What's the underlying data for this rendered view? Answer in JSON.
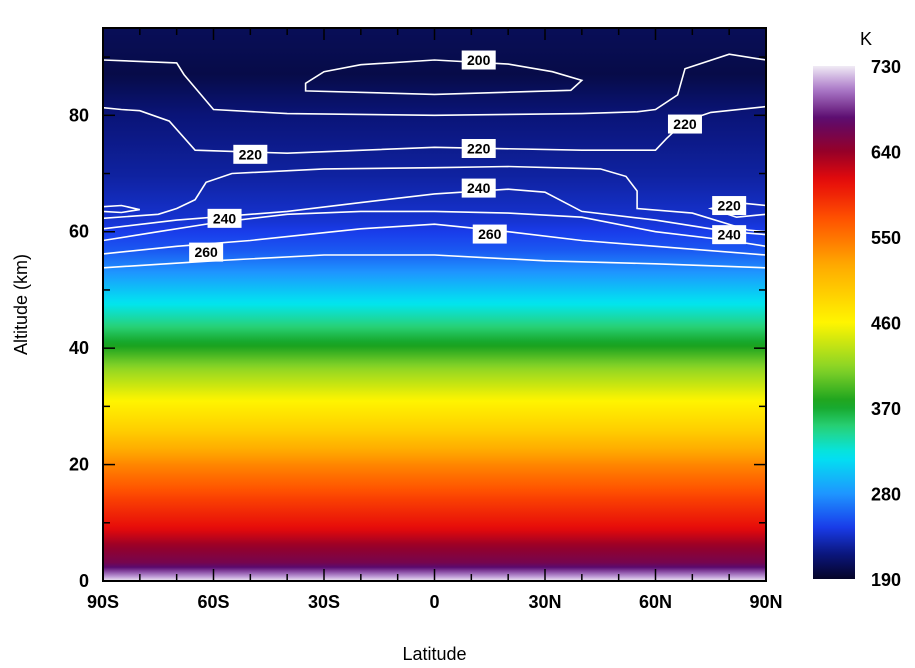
{
  "chart_data": {
    "type": "heatmap",
    "title": "",
    "xlabel": "Latitude",
    "ylabel": "Altitude (km)",
    "xlim": [
      -90,
      90
    ],
    "ylim": [
      0,
      95
    ],
    "x_ticks": [
      {
        "value": -90,
        "label": "90S"
      },
      {
        "value": -60,
        "label": "60S"
      },
      {
        "value": -30,
        "label": "30S"
      },
      {
        "value": 0,
        "label": "0"
      },
      {
        "value": 30,
        "label": "30N"
      },
      {
        "value": 60,
        "label": "60N"
      },
      {
        "value": 90,
        "label": "90N"
      }
    ],
    "y_ticks": [
      {
        "value": 0,
        "label": "0"
      },
      {
        "value": 20,
        "label": "20"
      },
      {
        "value": 40,
        "label": "40"
      },
      {
        "value": 60,
        "label": "60"
      },
      {
        "value": 80,
        "label": "80"
      }
    ],
    "colorbar": {
      "unit": "K",
      "min": 190,
      "max": 730,
      "ticks": [
        {
          "value": 190,
          "label": "190"
        },
        {
          "value": 280,
          "label": "280"
        },
        {
          "value": 370,
          "label": "370"
        },
        {
          "value": 460,
          "label": "460"
        },
        {
          "value": 550,
          "label": "550"
        },
        {
          "value": 640,
          "label": "640"
        },
        {
          "value": 730,
          "label": "730"
        }
      ]
    },
    "temperature_profile_K": [
      {
        "altitude_km": 0,
        "value": 730
      },
      {
        "altitude_km": 3,
        "value": 660
      },
      {
        "altitude_km": 6,
        "value": 640
      },
      {
        "altitude_km": 9,
        "value": 610
      },
      {
        "altitude_km": 14,
        "value": 580
      },
      {
        "altitude_km": 20,
        "value": 540
      },
      {
        "altitude_km": 26,
        "value": 490
      },
      {
        "altitude_km": 31,
        "value": 460
      },
      {
        "altitude_km": 36,
        "value": 420
      },
      {
        "altitude_km": 40,
        "value": 380
      },
      {
        "altitude_km": 45,
        "value": 340
      },
      {
        "altitude_km": 49,
        "value": 310
      },
      {
        "altitude_km": 53,
        "value": 280
      },
      {
        "altitude_km": 57,
        "value": 255
      },
      {
        "altitude_km": 62,
        "value": 238
      },
      {
        "altitude_km": 70,
        "value": 225
      },
      {
        "altitude_km": 80,
        "value": 215
      },
      {
        "altitude_km": 87,
        "value": 200
      },
      {
        "altitude_km": 95,
        "value": 205
      }
    ],
    "contours": [
      {
        "level": 200,
        "label": "200",
        "closed": true,
        "points": [
          [
            -35,
            85.5
          ],
          [
            -30,
            87.5
          ],
          [
            -20,
            88.7
          ],
          [
            0,
            89.5
          ],
          [
            20,
            88.8
          ],
          [
            32,
            87.5
          ],
          [
            40,
            86
          ],
          [
            37,
            84.3
          ],
          [
            0,
            83.6
          ],
          [
            -35,
            84.2
          ]
        ]
      },
      {
        "level": 220,
        "label": "220",
        "closed": false,
        "points": [
          [
            -90,
            89.5
          ],
          [
            -70,
            89
          ],
          [
            -68,
            87
          ],
          [
            -60,
            81
          ],
          [
            -40,
            80.3
          ],
          [
            0,
            80
          ],
          [
            40,
            80.3
          ],
          [
            55,
            80.6
          ],
          [
            60,
            81
          ],
          [
            66,
            83.5
          ],
          [
            68,
            88
          ],
          [
            80,
            90.5
          ],
          [
            90,
            89.5
          ]
        ]
      },
      {
        "level": 220,
        "label": "220",
        "closed": false,
        "points": [
          [
            -90,
            81.3
          ],
          [
            -85,
            81
          ],
          [
            -80,
            80.8
          ],
          [
            -72,
            79
          ],
          [
            -65,
            74
          ],
          [
            -40,
            73.5
          ],
          [
            0,
            74.5
          ],
          [
            40,
            74
          ],
          [
            60,
            74
          ],
          [
            63,
            76
          ],
          [
            68,
            79
          ],
          [
            75,
            80.5
          ],
          [
            90,
            81.5
          ]
        ]
      },
      {
        "level": 220,
        "label": "220",
        "closed": true,
        "points": [
          [
            -90,
            64.3
          ],
          [
            -85,
            64.5
          ],
          [
            -80,
            63.8
          ],
          [
            -85,
            63.3
          ],
          [
            -90,
            63.5
          ]
        ]
      },
      {
        "level": 220,
        "label": "220",
        "closed": true,
        "points": [
          [
            90,
            64.5
          ],
          [
            82,
            65
          ],
          [
            75,
            64
          ],
          [
            82,
            62.5
          ],
          [
            90,
            63
          ]
        ]
      },
      {
        "level": 240,
        "label": "240",
        "closed": false,
        "points": [
          [
            -90,
            62.3
          ],
          [
            -75,
            63
          ],
          [
            -70,
            64
          ],
          [
            -65,
            65.5
          ],
          [
            -62,
            68.5
          ],
          [
            -55,
            70
          ],
          [
            -30,
            70.8
          ],
          [
            0,
            71
          ],
          [
            20,
            71.2
          ],
          [
            45,
            70.8
          ],
          [
            52,
            69.5
          ],
          [
            55,
            67
          ],
          [
            55,
            64
          ],
          [
            70,
            63.2
          ],
          [
            85,
            60.3
          ],
          [
            90,
            60
          ]
        ]
      },
      {
        "level": 240,
        "label": "240",
        "closed": false,
        "points": [
          [
            -90,
            60.5
          ],
          [
            -70,
            62
          ],
          [
            -40,
            63.5
          ],
          [
            -20,
            65
          ],
          [
            0,
            66.5
          ],
          [
            20,
            67.3
          ],
          [
            30,
            66.8
          ],
          [
            40,
            63.5
          ],
          [
            60,
            62
          ],
          [
            80,
            60
          ],
          [
            90,
            59.5
          ]
        ]
      },
      {
        "level": 260,
        "label": "260",
        "closed": false,
        "points": [
          [
            -90,
            58.5
          ],
          [
            -75,
            60
          ],
          [
            -60,
            61.5
          ],
          [
            -40,
            63
          ],
          [
            -20,
            63.5
          ],
          [
            0,
            63.5
          ],
          [
            20,
            63.2
          ],
          [
            40,
            62.5
          ],
          [
            60,
            60
          ],
          [
            80,
            58.5
          ],
          [
            90,
            57.5
          ]
        ]
      },
      {
        "level": 260,
        "label": "260",
        "closed": false,
        "points": [
          [
            -90,
            56.2
          ],
          [
            -70,
            57.5
          ],
          [
            -50,
            58.5
          ],
          [
            -20,
            60.5
          ],
          [
            0,
            61.3
          ],
          [
            20,
            60
          ],
          [
            40,
            58.5
          ],
          [
            60,
            57.5
          ],
          [
            90,
            56
          ]
        ]
      },
      {
        "level": 260,
        "label": "260",
        "closed": false,
        "points": [
          [
            -90,
            53.8
          ],
          [
            -60,
            55
          ],
          [
            -30,
            56
          ],
          [
            0,
            56
          ],
          [
            30,
            55
          ],
          [
            60,
            54.5
          ],
          [
            90,
            53.8
          ]
        ]
      }
    ],
    "contour_labels": [
      {
        "text": "200",
        "lat": 12,
        "alt": 89.5
      },
      {
        "text": "220",
        "lat": 68,
        "alt": 78.5
      },
      {
        "text": "220",
        "lat": -50,
        "alt": 73.3
      },
      {
        "text": "220",
        "lat": 12,
        "alt": 74.3
      },
      {
        "text": "220",
        "lat": 80,
        "alt": 64.5
      },
      {
        "text": "240",
        "lat": 12,
        "alt": 67.5
      },
      {
        "text": "240",
        "lat": -57,
        "alt": 62.3
      },
      {
        "text": "240",
        "lat": 80,
        "alt": 59.5
      },
      {
        "text": "260",
        "lat": 15,
        "alt": 59.6
      },
      {
        "text": "260",
        "lat": -62,
        "alt": 56.5
      }
    ]
  }
}
